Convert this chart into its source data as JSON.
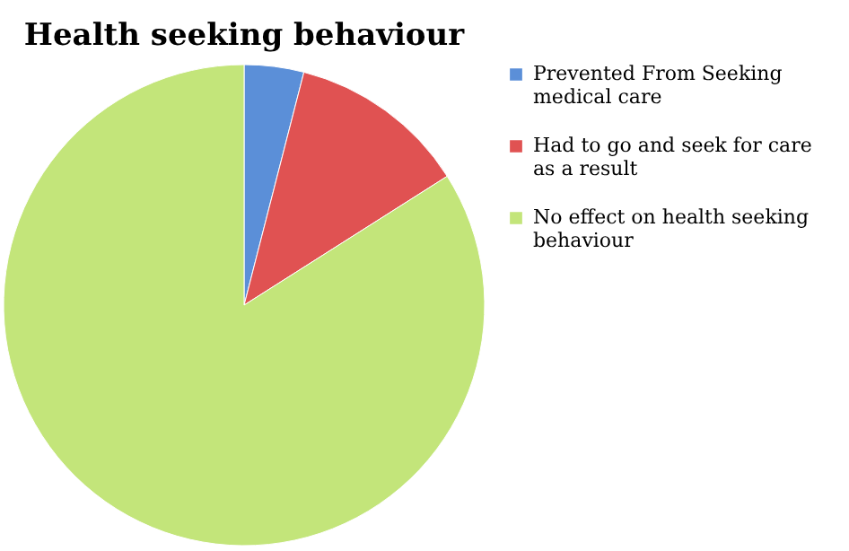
{
  "chart_data": {
    "type": "pie",
    "title": "Health seeking behaviour",
    "categories": [
      "Prevented From Seeking medical care",
      "Had to go and seek for care as a result",
      "No effect on health seeking behaviour"
    ],
    "values": [
      4,
      12,
      84
    ],
    "colors": [
      "#5b8fd8",
      "#e05252",
      "#c3e57a"
    ],
    "legend": "right"
  }
}
